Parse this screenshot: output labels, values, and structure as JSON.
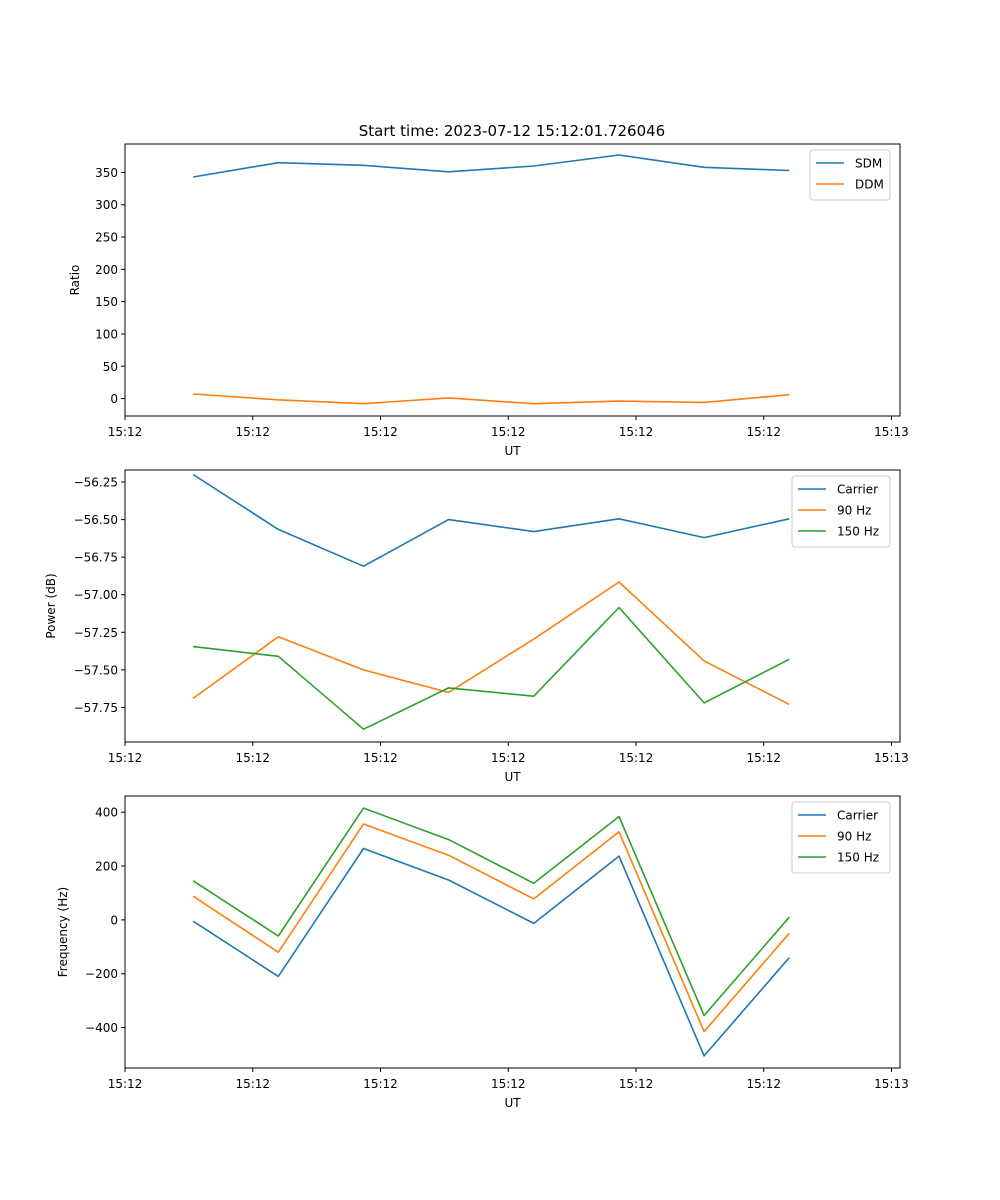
{
  "figure_title": "Start time: 2023-07-12 15:12:01.726046",
  "chart_data": [
    {
      "type": "line",
      "title": "Start time: 2023-07-12 15:12:01.726046",
      "xlabel": "UT",
      "ylabel": "Ratio",
      "x": [
        1,
        2,
        3,
        4,
        5,
        6,
        7,
        8
      ],
      "xlim": [
        0.2,
        9.3
      ],
      "xticks": [
        0.2,
        1.7,
        3.2,
        4.7,
        6.2,
        7.7,
        9.2
      ],
      "xtick_labels": [
        "15:12",
        "15:12",
        "15:12",
        "15:12",
        "15:12",
        "15:12",
        "15:13"
      ],
      "ylim": [
        -27,
        394
      ],
      "yticks": [
        0,
        50,
        100,
        150,
        200,
        250,
        300,
        350
      ],
      "ytick_labels": [
        "0",
        "50",
        "100",
        "150",
        "200",
        "250",
        "300",
        "350"
      ],
      "legend": "upper right",
      "series": [
        {
          "name": "SDM",
          "color": "#1f77b4",
          "values": [
            343,
            365,
            361,
            351,
            360,
            377,
            358,
            353
          ]
        },
        {
          "name": "DDM",
          "color": "#ff7f0e",
          "values": [
            7,
            -2,
            -8,
            1,
            -8,
            -4,
            -6,
            6
          ]
        }
      ]
    },
    {
      "type": "line",
      "xlabel": "UT",
      "ylabel": "Power (dB)",
      "x": [
        1,
        2,
        3,
        4,
        5,
        6,
        7,
        8
      ],
      "xlim": [
        0.2,
        9.3
      ],
      "xticks": [
        0.2,
        1.7,
        3.2,
        4.7,
        6.2,
        7.7,
        9.2
      ],
      "xtick_labels": [
        "15:12",
        "15:12",
        "15:12",
        "15:12",
        "15:12",
        "15:12",
        "15:13"
      ],
      "ylim": [
        -57.98,
        -56.17
      ],
      "yticks": [
        -57.75,
        -57.5,
        -57.25,
        -57.0,
        -56.75,
        -56.5,
        -56.25
      ],
      "ytick_labels": [
        "−57.75",
        "−57.50",
        "−57.25",
        "−57.00",
        "−56.75",
        "−56.50",
        "−56.25"
      ],
      "legend": "upper right",
      "series": [
        {
          "name": "Carrier",
          "color": "#1f77b4",
          "values": [
            -56.2,
            -56.565,
            -56.81,
            -56.5,
            -56.58,
            -56.495,
            -56.62,
            -56.495
          ]
        },
        {
          "name": "90 Hz",
          "color": "#ff7f0e",
          "values": [
            -57.69,
            -57.28,
            -57.5,
            -57.65,
            -57.295,
            -56.915,
            -57.44,
            -57.73
          ]
        },
        {
          "name": "150 Hz",
          "color": "#2ca02c",
          "values": [
            -57.345,
            -57.41,
            -57.895,
            -57.62,
            -57.675,
            -57.085,
            -57.72,
            -57.43
          ]
        }
      ]
    },
    {
      "type": "line",
      "xlabel": "UT",
      "ylabel": "Frequency (Hz)",
      "x": [
        1,
        2,
        3,
        4,
        5,
        6,
        7,
        8
      ],
      "xlim": [
        0.2,
        9.3
      ],
      "xticks": [
        0.2,
        1.7,
        3.2,
        4.7,
        6.2,
        7.7,
        9.2
      ],
      "xtick_labels": [
        "15:12",
        "15:12",
        "15:12",
        "15:12",
        "15:12",
        "15:12",
        "15:13"
      ],
      "ylim": [
        -550,
        460
      ],
      "yticks": [
        -400,
        -200,
        0,
        200,
        400
      ],
      "ytick_labels": [
        "−400",
        "−200",
        "0",
        "200",
        "400"
      ],
      "legend": "upper right",
      "series": [
        {
          "name": "Carrier",
          "color": "#1f77b4",
          "values": [
            -5,
            -210,
            265,
            148,
            -13,
            237,
            -505,
            -140
          ]
        },
        {
          "name": "90 Hz",
          "color": "#ff7f0e",
          "values": [
            88,
            -120,
            356,
            240,
            78,
            327,
            -415,
            -50
          ]
        },
        {
          "name": "150 Hz",
          "color": "#2ca02c",
          "values": [
            145,
            -60,
            415,
            298,
            136,
            384,
            -355,
            10
          ]
        }
      ]
    }
  ]
}
